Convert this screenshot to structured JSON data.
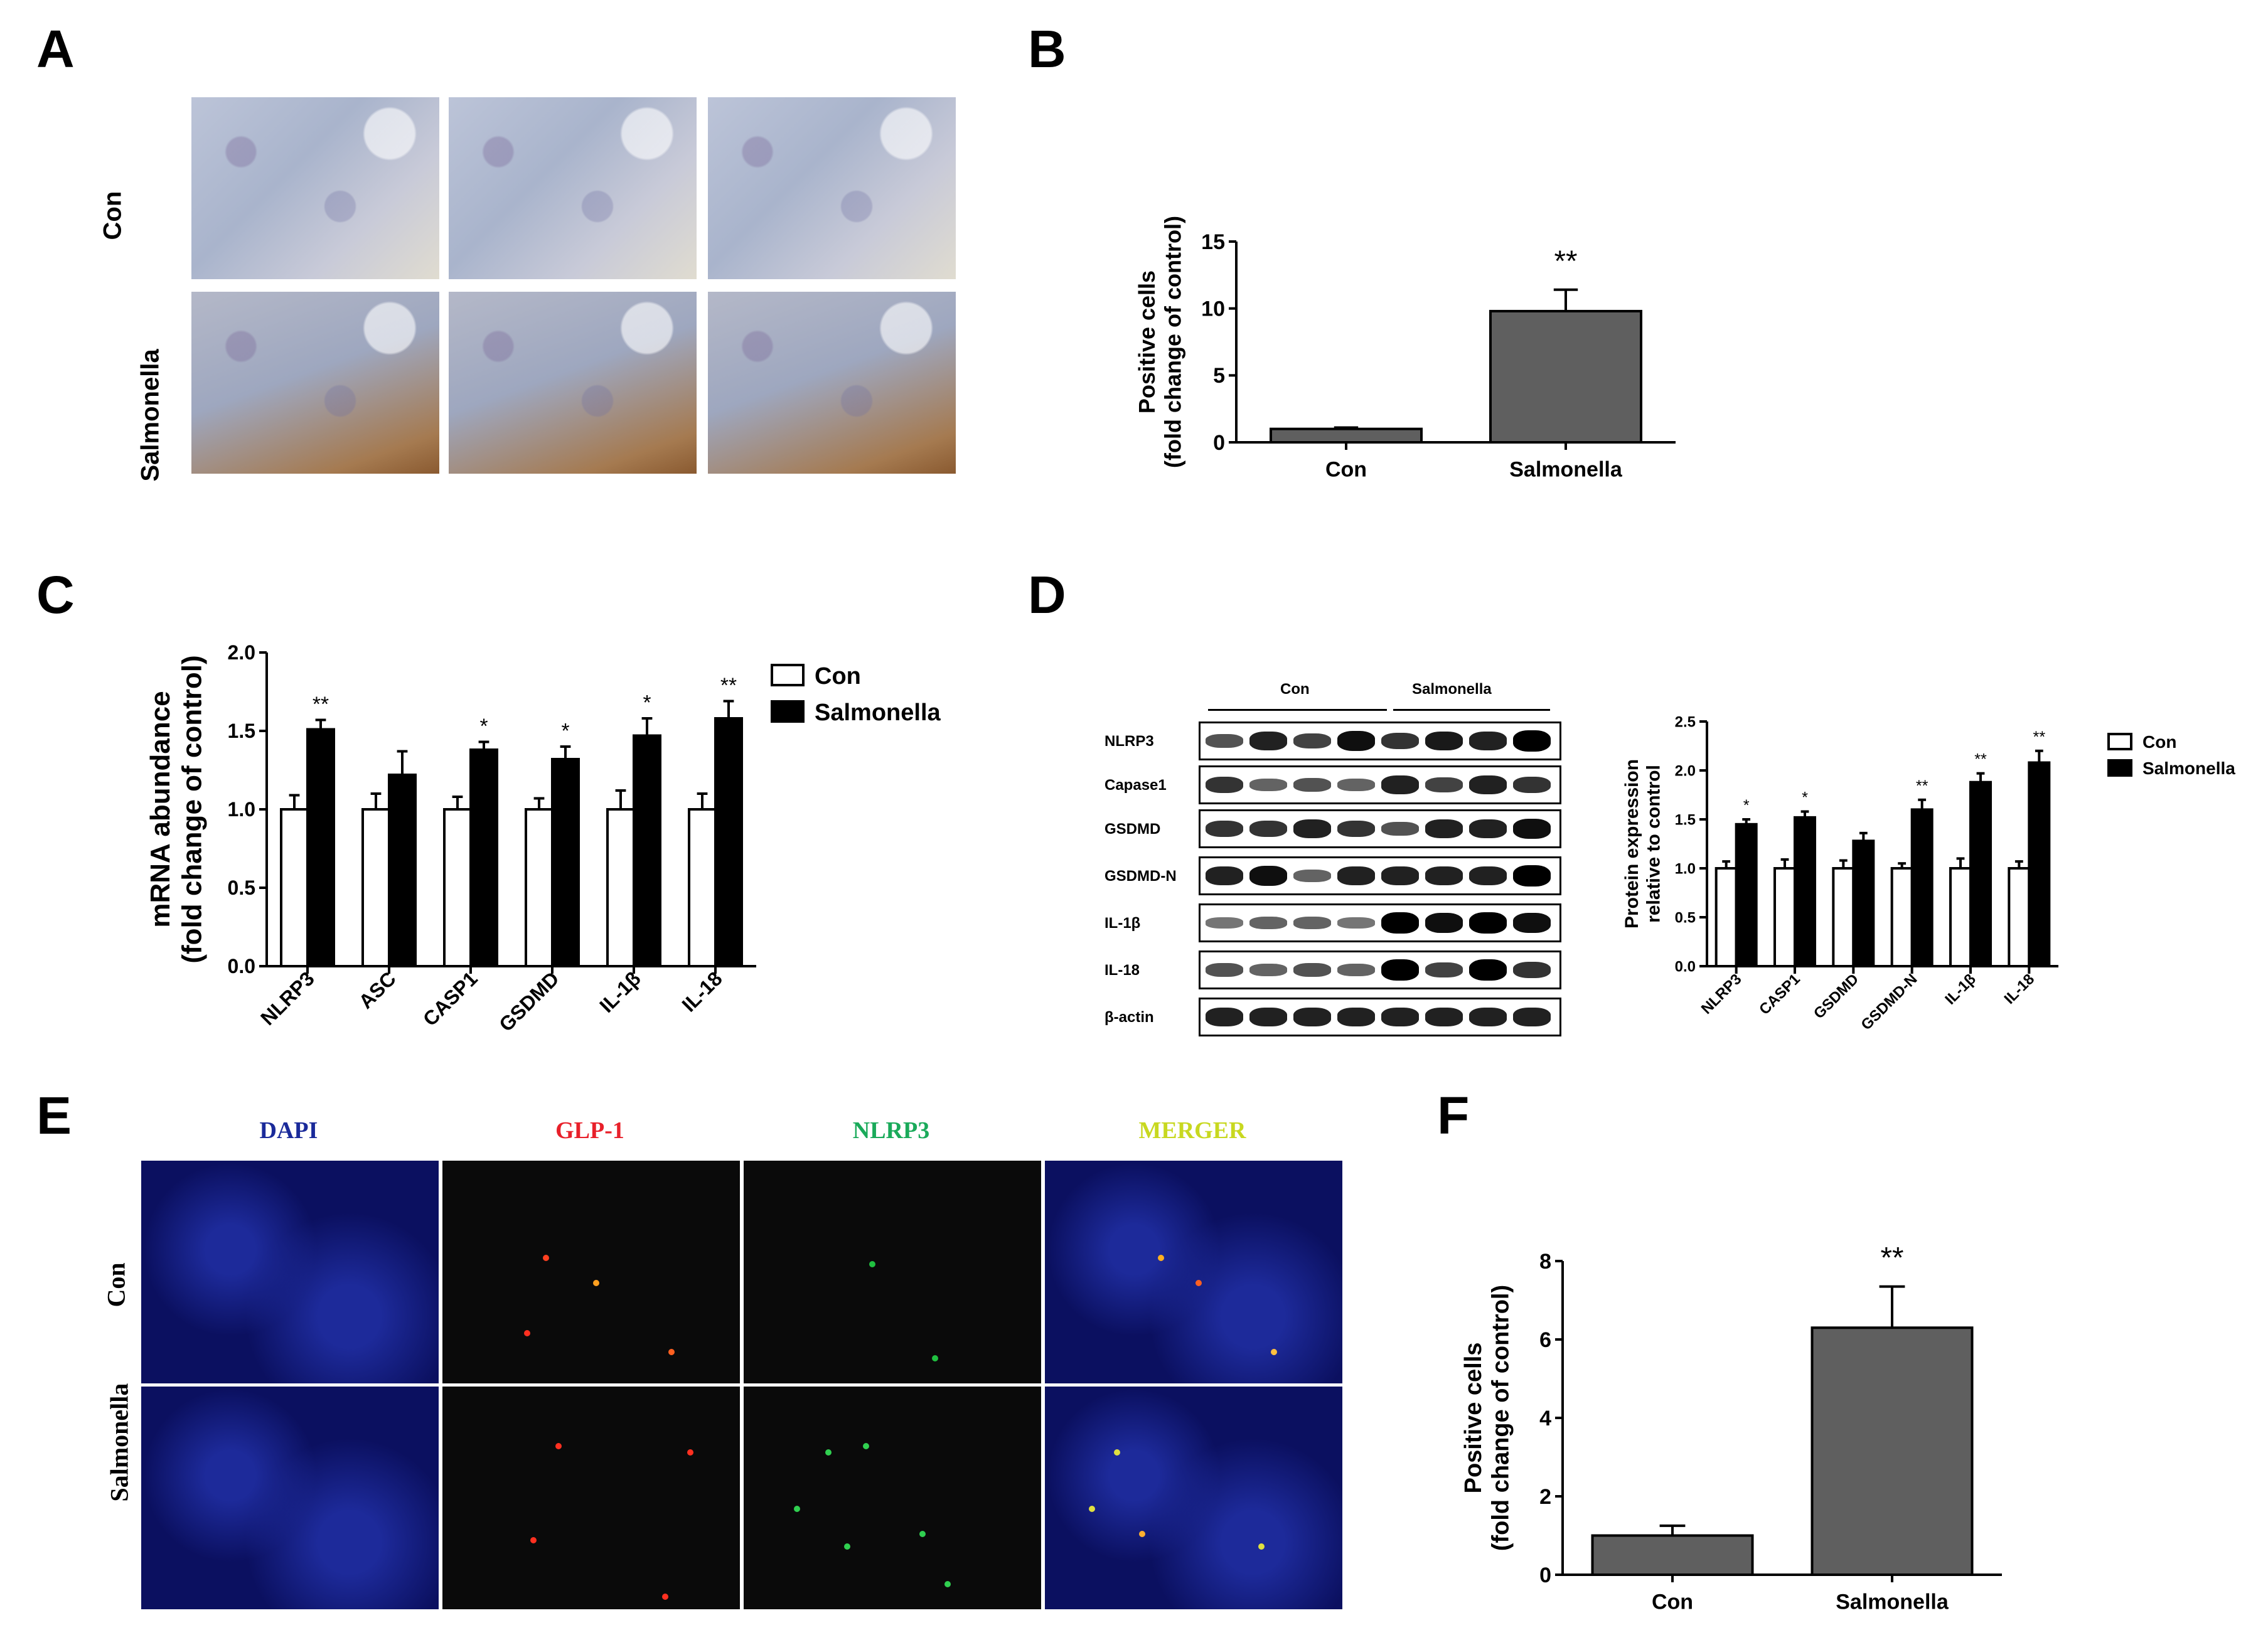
{
  "panels": {
    "A": {
      "letter": "A",
      "row_labels": [
        "Con",
        "Salmonella"
      ]
    },
    "B": {
      "letter": "B"
    },
    "C": {
      "letter": "C"
    },
    "D": {
      "letter": "D",
      "blot_groups": [
        "Con",
        "Salmonella"
      ],
      "blot_rows": [
        "NLRP3",
        "Capase1",
        "GSDMD",
        "GSDMD-N",
        "IL-1β",
        "IL-18",
        "β-actin"
      ]
    },
    "E": {
      "letter": "E",
      "column_labels": [
        "DAPI",
        "GLP-1",
        "NLRP3",
        "MERGER"
      ],
      "column_colors": [
        "#1a2a9a",
        "#e8202a",
        "#1aaa5a",
        "#c8d820"
      ],
      "row_labels": [
        "Con",
        "Salmonella"
      ]
    },
    "F": {
      "letter": "F"
    }
  },
  "chart_data": [
    {
      "id": "B",
      "type": "bar",
      "categories": [
        "Con",
        "Salmonella"
      ],
      "values": [
        1.0,
        9.8
      ],
      "errors": [
        0.1,
        1.6
      ],
      "significance": [
        "",
        "**"
      ],
      "ylabel": "Positive cells",
      "ylabel2": "(fold change of control)",
      "ylim": [
        0,
        15
      ],
      "yticks": [
        0,
        5,
        10,
        15
      ],
      "bar_color": "#5f5f5f"
    },
    {
      "id": "C",
      "type": "bar",
      "categories": [
        "NLRP3",
        "ASC",
        "CASP1",
        "GSDMD",
        "IL-1β",
        "IL-18"
      ],
      "series": [
        {
          "name": "Con",
          "values": [
            1.0,
            1.0,
            1.0,
            1.0,
            1.0,
            1.0
          ],
          "errors": [
            0.09,
            0.1,
            0.08,
            0.07,
            0.12,
            0.1
          ],
          "color": "#ffffff"
        },
        {
          "name": "Salmonella",
          "values": [
            1.51,
            1.22,
            1.38,
            1.32,
            1.47,
            1.58
          ],
          "errors": [
            0.06,
            0.15,
            0.05,
            0.08,
            0.11,
            0.11
          ],
          "color": "#000000"
        }
      ],
      "significance": [
        "**",
        "",
        "*",
        "*",
        "*",
        "**"
      ],
      "ylabel": "mRNA abundance",
      "ylabel2": "(fold change of control)",
      "ylim": [
        0,
        2.0
      ],
      "yticks": [
        "0.0",
        "0.5",
        "1.0",
        "1.5",
        "2.0"
      ],
      "legend": "right"
    },
    {
      "id": "D",
      "type": "bar",
      "categories": [
        "NLRP3",
        "CASP1",
        "GSDMD",
        "GSDMD-N",
        "IL-1β",
        "IL-18"
      ],
      "series": [
        {
          "name": "Con",
          "values": [
            1.0,
            1.0,
            1.0,
            1.0,
            1.0,
            1.0
          ],
          "errors": [
            0.07,
            0.09,
            0.08,
            0.05,
            0.1,
            0.07
          ],
          "color": "#ffffff"
        },
        {
          "name": "Salmonella",
          "values": [
            1.45,
            1.52,
            1.28,
            1.6,
            1.88,
            2.08
          ],
          "errors": [
            0.05,
            0.06,
            0.08,
            0.1,
            0.09,
            0.12
          ],
          "color": "#000000"
        }
      ],
      "significance": [
        "*",
        "*",
        "",
        "**",
        "**",
        "**"
      ],
      "ylabel": "Protein expression",
      "ylabel2": "relative to control",
      "ylim": [
        0,
        2.5
      ],
      "yticks": [
        "0.0",
        "0.5",
        "1.0",
        "1.5",
        "2.0",
        "2.5"
      ],
      "legend": "right"
    },
    {
      "id": "F",
      "type": "bar",
      "categories": [
        "Con",
        "Salmonella"
      ],
      "values": [
        1.0,
        6.3
      ],
      "errors": [
        0.25,
        1.05
      ],
      "significance": [
        "",
        "**"
      ],
      "ylabel": "Positive cells",
      "ylabel2": "(fold change of control)",
      "ylim": [
        0,
        8
      ],
      "yticks": [
        0,
        2,
        4,
        6,
        8
      ],
      "bar_color": "#5f5f5f"
    }
  ]
}
